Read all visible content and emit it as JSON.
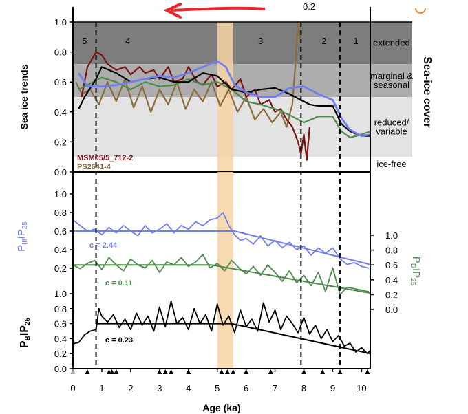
{
  "chart_data": [
    {
      "type": "line",
      "panel": "top",
      "title": "",
      "xlabel": "Age (ka)",
      "ylabel": "Sea ice trends",
      "right_label": "Sea-ice cover",
      "xlim": [
        0,
        10.3
      ],
      "ylim": [
        0,
        1.0
      ],
      "yticks": [
        "0.0",
        "0.2",
        "0.4",
        "0.6",
        "0.8",
        "1.0"
      ],
      "bands": [
        {
          "label": "extended",
          "from": 0.72,
          "to": 1.0,
          "color": "#7d7d7d"
        },
        {
          "label1": "marginal &",
          "label2": "seasonal",
          "from": 0.5,
          "to": 0.72,
          "color": "#adadad"
        },
        {
          "label1": "reduced/",
          "label2": "variable",
          "from": 0.1,
          "to": 0.5,
          "color": "#e3e3e3"
        },
        {
          "label": "ice-free",
          "from": 0.0,
          "to": 0.1,
          "color": "#ffffff"
        }
      ],
      "zone_labels": [
        {
          "text": "5",
          "x": 0.4
        },
        {
          "text": "4",
          "x": 1.9
        },
        {
          "text": "3",
          "x": 6.5
        },
        {
          "text": "2",
          "x": 8.7
        },
        {
          "text": "1",
          "x": 9.8
        }
      ],
      "legend": [
        {
          "name": "MSM05/5_712-2",
          "color": "#7a1414"
        },
        {
          "name": "PS2641-4",
          "color": "#8c6a3c"
        }
      ],
      "series": [
        {
          "name": "blue",
          "color": "#6f7ff0",
          "x": [
            0.2,
            0.5,
            1.0,
            1.5,
            2.0,
            2.5,
            3.0,
            3.5,
            4.0,
            4.5,
            5.0,
            5.3,
            5.6,
            6.0,
            6.5,
            7.0,
            7.5,
            8.0,
            8.5,
            9.0,
            9.3,
            9.6,
            10.0,
            10.3
          ],
          "y": [
            0.66,
            0.57,
            0.57,
            0.58,
            0.6,
            0.62,
            0.64,
            0.63,
            0.66,
            0.7,
            0.74,
            0.7,
            0.58,
            0.53,
            0.5,
            0.5,
            0.56,
            0.57,
            0.52,
            0.48,
            0.36,
            0.28,
            0.24,
            0.25
          ]
        },
        {
          "name": "black",
          "color": "#000000",
          "x": [
            0.2,
            0.4,
            0.6,
            0.8,
            1.0,
            1.5,
            2.0,
            2.5,
            3.0,
            3.5,
            4.0,
            4.5,
            5.0,
            5.5,
            6.0,
            6.5,
            7.0,
            7.5,
            7.9,
            8.2,
            8.5,
            9.0,
            9.3,
            9.6,
            10.0,
            10.3
          ],
          "y": [
            0.42,
            0.5,
            0.56,
            0.62,
            0.7,
            0.66,
            0.6,
            0.62,
            0.63,
            0.6,
            0.6,
            0.66,
            0.64,
            0.55,
            0.53,
            0.55,
            0.56,
            0.52,
            0.48,
            0.45,
            0.44,
            0.44,
            0.32,
            0.27,
            0.24,
            0.24
          ]
        },
        {
          "name": "green",
          "color": "#4d8b4c",
          "x": [
            0.2,
            0.5,
            1.0,
            1.5,
            2.0,
            2.5,
            3.0,
            3.5,
            4.0,
            4.5,
            5.0,
            5.5,
            6.0,
            6.5,
            7.0,
            7.5,
            8.0,
            8.5,
            9.0,
            9.3,
            9.6,
            10.0,
            10.3
          ],
          "y": [
            0.55,
            0.58,
            0.63,
            0.6,
            0.55,
            0.6,
            0.57,
            0.58,
            0.62,
            0.58,
            0.6,
            0.55,
            0.47,
            0.45,
            0.42,
            0.38,
            0.33,
            0.37,
            0.37,
            0.27,
            0.23,
            0.25,
            0.27
          ]
        },
        {
          "name": "MSM05/5_712-2",
          "color": "#7a1414",
          "x": [
            0.3,
            0.5,
            0.8,
            1.0,
            1.2,
            1.5,
            1.8,
            2.0,
            2.3,
            2.5,
            2.8,
            3.0,
            3.3,
            3.5,
            3.8,
            4.0,
            4.3,
            4.5,
            4.8,
            5.0,
            5.3,
            5.5,
            5.8,
            6.0,
            6.3,
            6.5,
            6.8,
            7.0,
            7.2,
            7.4,
            7.6,
            7.8,
            7.9,
            8.0,
            8.1,
            8.2
          ],
          "y": [
            0.5,
            0.7,
            0.8,
            0.78,
            0.72,
            0.68,
            0.7,
            0.65,
            0.7,
            0.66,
            0.68,
            0.62,
            0.7,
            0.6,
            0.62,
            0.7,
            0.6,
            0.58,
            0.65,
            0.57,
            0.6,
            0.55,
            0.62,
            0.5,
            0.55,
            0.45,
            0.48,
            0.4,
            0.42,
            0.35,
            0.3,
            0.2,
            0.12,
            0.25,
            0.08,
            0.3
          ]
        },
        {
          "name": "PS2641-4",
          "color": "#8c6a3c",
          "x": [
            0.1,
            0.3,
            0.6,
            0.9,
            1.2,
            1.5,
            1.8,
            2.1,
            2.4,
            2.7,
            3.0,
            3.3,
            3.6,
            3.9,
            4.2,
            4.5,
            4.8,
            5.1,
            5.4,
            5.7,
            6.0,
            6.3,
            6.6,
            6.9,
            7.2,
            7.4,
            7.6,
            7.7,
            7.8,
            7.9
          ],
          "y": [
            0.6,
            0.52,
            0.55,
            0.45,
            0.6,
            0.47,
            0.62,
            0.43,
            0.57,
            0.4,
            0.55,
            0.45,
            0.6,
            0.42,
            0.55,
            0.47,
            0.6,
            0.44,
            0.55,
            0.4,
            0.5,
            0.35,
            0.42,
            0.33,
            0.4,
            0.3,
            0.45,
            0.7,
            1.0,
            0.85
          ]
        }
      ]
    },
    {
      "type": "line",
      "panel": "PIIIIP25",
      "ylabel_main": "P",
      "ylabel_sub": "III",
      "ylabel_tail": "IP",
      "ylabel_sub2": "25",
      "color": "#6f7ff0",
      "ylim": [
        0.2,
        1.0
      ],
      "yticks": [
        "1.0",
        "0.8",
        "0.6",
        "0.4",
        "0.2"
      ],
      "annotation": "c = 2.44",
      "x": [
        0,
        0.25,
        0.5,
        0.75,
        1,
        1.25,
        1.5,
        1.75,
        2,
        2.25,
        2.5,
        2.75,
        3,
        3.25,
        3.5,
        3.75,
        4,
        4.25,
        4.5,
        4.75,
        5,
        5.2,
        5.4,
        5.6,
        5.8,
        6,
        6.25,
        6.5,
        6.75,
        7,
        7.25,
        7.5,
        7.75,
        8,
        8.25,
        8.5,
        8.75,
        9,
        9.25,
        9.5,
        9.75,
        10,
        10.25
      ],
      "y": [
        0.72,
        0.66,
        0.6,
        0.62,
        0.56,
        0.64,
        0.58,
        0.66,
        0.6,
        0.55,
        0.66,
        0.58,
        0.62,
        0.68,
        0.58,
        0.66,
        0.62,
        0.7,
        0.66,
        0.72,
        0.74,
        0.8,
        0.66,
        0.56,
        0.5,
        0.52,
        0.46,
        0.55,
        0.44,
        0.5,
        0.42,
        0.48,
        0.4,
        0.44,
        0.34,
        0.42,
        0.36,
        0.42,
        0.3,
        0.24,
        0.26,
        0.22,
        0.2
      ],
      "fit_x": [
        0,
        5.6,
        10.3
      ],
      "fit_y": [
        0.6,
        0.6,
        0.24
      ]
    },
    {
      "type": "line",
      "panel": "PDIP25",
      "ylabel_main": "P",
      "ylabel_sub": "D",
      "ylabel_tail": "IP",
      "ylabel_sub2": "25",
      "color": "#4d8b4c",
      "ylim": [
        0.0,
        1.0
      ],
      "yticks": [
        "1.0",
        "0.8",
        "0.6",
        "0.4",
        "0.2",
        "0.0"
      ],
      "annotation": "c = 0.11",
      "x": [
        0,
        0.25,
        0.5,
        0.75,
        1,
        1.25,
        1.5,
        1.75,
        2,
        2.25,
        2.5,
        2.75,
        3,
        3.25,
        3.5,
        3.75,
        4,
        4.25,
        4.5,
        4.75,
        5,
        5.25,
        5.5,
        5.75,
        6,
        6.25,
        6.5,
        6.75,
        7,
        7.25,
        7.5,
        7.75,
        8,
        8.25,
        8.5,
        8.75,
        9,
        9.25,
        9.5,
        9.75,
        10,
        10.25
      ],
      "y": [
        0.6,
        0.55,
        0.62,
        0.66,
        0.54,
        0.7,
        0.6,
        0.52,
        0.68,
        0.6,
        0.56,
        0.66,
        0.5,
        0.64,
        0.6,
        0.7,
        0.58,
        0.64,
        0.74,
        0.56,
        0.62,
        0.52,
        0.66,
        0.56,
        0.48,
        0.58,
        0.46,
        0.6,
        0.5,
        0.38,
        0.52,
        0.36,
        0.46,
        0.32,
        0.5,
        0.24,
        0.56,
        0.2,
        0.3,
        0.28,
        0.26,
        0.24
      ],
      "fit_x": [
        0,
        4.8,
        10.3
      ],
      "fit_y": [
        0.6,
        0.6,
        0.22
      ]
    },
    {
      "type": "line",
      "panel": "PBIP25",
      "ylabel_main": "P",
      "ylabel_sub": "B",
      "ylabel_tail": "IP",
      "ylabel_sub2": "25",
      "color": "#000000",
      "ylim": [
        0.0,
        1.0
      ],
      "yticks": [
        "1.0",
        "0.8",
        "0.6",
        "0.4",
        "0.2",
        "0.0"
      ],
      "xticks": [
        "0",
        "1",
        "2",
        "3",
        "4",
        "5",
        "6",
        "7",
        "8",
        "9",
        "10"
      ],
      "annotation": "c = 0.23",
      "x": [
        0,
        0.2,
        0.4,
        0.6,
        0.8,
        0.9,
        1.0,
        1.2,
        1.4,
        1.6,
        1.8,
        2.0,
        2.2,
        2.4,
        2.6,
        2.8,
        3.0,
        3.2,
        3.4,
        3.6,
        3.8,
        4.0,
        4.2,
        4.4,
        4.6,
        4.8,
        5.0,
        5.2,
        5.4,
        5.6,
        5.8,
        6.0,
        6.2,
        6.4,
        6.6,
        6.8,
        7.0,
        7.2,
        7.4,
        7.6,
        7.8,
        8.0,
        8.2,
        8.4,
        8.6,
        8.8,
        9.0,
        9.2,
        9.4,
        9.6,
        9.8,
        10.0,
        10.2,
        10.3
      ],
      "y": [
        0.33,
        0.35,
        0.45,
        0.5,
        0.52,
        0.8,
        0.7,
        0.62,
        0.72,
        0.55,
        0.66,
        0.52,
        0.74,
        0.58,
        0.7,
        0.5,
        0.82,
        0.56,
        0.9,
        0.6,
        0.68,
        0.52,
        0.8,
        0.6,
        0.72,
        0.5,
        0.86,
        0.58,
        0.7,
        0.48,
        0.78,
        0.56,
        0.66,
        0.5,
        0.88,
        0.62,
        0.78,
        0.52,
        0.7,
        0.6,
        0.48,
        0.68,
        0.46,
        0.58,
        0.4,
        0.52,
        0.36,
        0.44,
        0.3,
        0.34,
        0.22,
        0.28,
        0.2,
        0.24
      ],
      "fit_x": [
        0.8,
        5.5,
        10.3
      ],
      "fit_y": [
        0.6,
        0.6,
        0.2
      ]
    }
  ],
  "age_markers": [
    0.5,
    1.25,
    1.35,
    1.5,
    3.0,
    3.2,
    3.4,
    4.0,
    5.15,
    5.35,
    5.55,
    6.0,
    6.85,
    8.0,
    8.65,
    9.25,
    10.2
  ],
  "boundaries": [
    0.8,
    7.9,
    9.25
  ],
  "highlight": {
    "from": 5.0,
    "to": 5.55,
    "color": "#f6d3a4"
  },
  "top_fragment": "0.2",
  "right_axis_ticks": [
    "1.0",
    "0.8",
    "0.6",
    "0.4",
    "0.2",
    "0.0"
  ],
  "colors": {
    "arrow": "#e8262b",
    "sun": "#f08a3a"
  },
  "icons": [
    "red-arrow-annotation",
    "sun-icon"
  ]
}
